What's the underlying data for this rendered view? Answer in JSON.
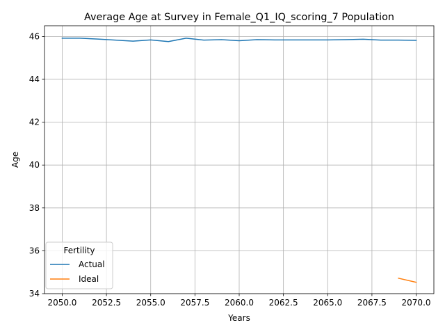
{
  "chart_data": {
    "type": "line",
    "title": "Average Age at Survey in Female_Q1_IQ_scoring_7 Population",
    "xlabel": "Years",
    "ylabel": "Age",
    "xlim": [
      2049,
      2071
    ],
    "ylim": [
      34,
      46.5
    ],
    "xticks": [
      2050.0,
      2052.5,
      2055.0,
      2057.5,
      2060.0,
      2062.5,
      2065.0,
      2067.5,
      2070.0
    ],
    "xtick_labels": [
      "2050.0",
      "2052.5",
      "2055.0",
      "2057.5",
      "2060.0",
      "2062.5",
      "2065.0",
      "2067.5",
      "2070.0"
    ],
    "yticks": [
      34,
      36,
      38,
      40,
      42,
      44,
      46
    ],
    "ytick_labels": [
      "34",
      "36",
      "38",
      "40",
      "42",
      "44",
      "46"
    ],
    "grid": true,
    "legend": {
      "title": "Fertility",
      "placement": "lower-left"
    },
    "series": [
      {
        "name": "Actual",
        "color": "#1f77b4",
        "x": [
          2050,
          2051,
          2052,
          2053,
          2054,
          2055,
          2056,
          2057,
          2058,
          2059,
          2060,
          2061,
          2062,
          2063,
          2064,
          2065,
          2066,
          2067,
          2068,
          2069,
          2070
        ],
        "y": [
          45.92,
          45.92,
          45.88,
          45.83,
          45.78,
          45.84,
          45.76,
          45.92,
          45.83,
          45.85,
          45.8,
          45.85,
          45.84,
          45.84,
          45.84,
          45.84,
          45.85,
          45.87,
          45.83,
          45.83,
          45.82
        ]
      },
      {
        "name": "Ideal",
        "color": "#ff7f0e",
        "x": [
          2069,
          2070
        ],
        "y": [
          34.72,
          34.53
        ]
      }
    ]
  }
}
